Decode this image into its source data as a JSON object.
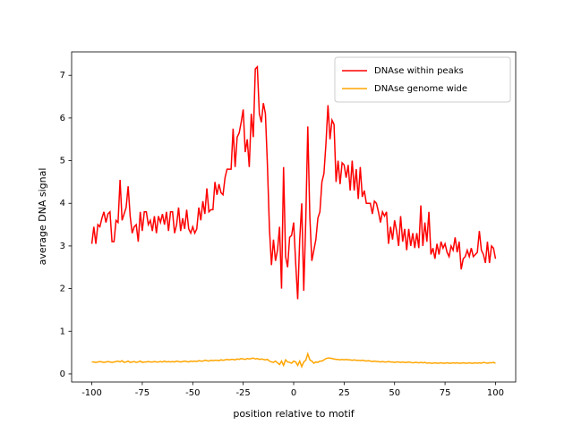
{
  "chart_data": {
    "type": "line",
    "xlabel": "position relative to motif",
    "ylabel": "average DNA signal",
    "x": [
      -100,
      -99,
      -98,
      -97,
      -96,
      -95,
      -94,
      -93,
      -92,
      -91,
      -90,
      -89,
      -88,
      -87,
      -86,
      -85,
      -84,
      -83,
      -82,
      -81,
      -80,
      -79,
      -78,
      -77,
      -76,
      -75,
      -74,
      -73,
      -72,
      -71,
      -70,
      -69,
      -68,
      -67,
      -66,
      -65,
      -64,
      -63,
      -62,
      -61,
      -60,
      -59,
      -58,
      -57,
      -56,
      -55,
      -54,
      -53,
      -52,
      -51,
      -50,
      -49,
      -48,
      -47,
      -46,
      -45,
      -44,
      -43,
      -42,
      -41,
      -40,
      -39,
      -38,
      -37,
      -36,
      -35,
      -34,
      -33,
      -32,
      -31,
      -30,
      -29,
      -28,
      -27,
      -26,
      -25,
      -24,
      -23,
      -22,
      -21,
      -20,
      -19,
      -18,
      -17,
      -16,
      -15,
      -14,
      -13,
      -12,
      -11,
      -10,
      -9,
      -8,
      -7,
      -6,
      -5,
      -4,
      -3,
      -2,
      -1,
      0,
      1,
      2,
      3,
      4,
      5,
      6,
      7,
      8,
      9,
      10,
      11,
      12,
      13,
      14,
      15,
      16,
      17,
      18,
      19,
      20,
      21,
      22,
      23,
      24,
      25,
      26,
      27,
      28,
      29,
      30,
      31,
      32,
      33,
      34,
      35,
      36,
      37,
      38,
      39,
      40,
      41,
      42,
      43,
      44,
      45,
      46,
      47,
      48,
      49,
      50,
      51,
      52,
      53,
      54,
      55,
      56,
      57,
      58,
      59,
      60,
      61,
      62,
      63,
      64,
      65,
      66,
      67,
      68,
      69,
      70,
      71,
      72,
      73,
      74,
      75,
      76,
      77,
      78,
      79,
      80,
      81,
      82,
      83,
      84,
      85,
      86,
      87,
      88,
      89,
      90,
      91,
      92,
      93,
      94,
      95,
      96,
      97,
      98,
      99,
      100
    ],
    "series": [
      {
        "name": "DNAse within peaks",
        "color": "#ff0000",
        "values": [
          3.05,
          3.45,
          3.05,
          3.5,
          3.45,
          3.65,
          3.8,
          3.55,
          3.75,
          3.8,
          3.1,
          3.1,
          3.6,
          3.55,
          4.55,
          3.6,
          3.75,
          3.9,
          4.4,
          3.7,
          3.3,
          3.45,
          3.5,
          3.1,
          3.8,
          3.35,
          3.8,
          3.8,
          3.5,
          3.6,
          3.35,
          3.7,
          3.3,
          3.7,
          3.55,
          3.75,
          3.5,
          3.8,
          3.35,
          3.8,
          3.8,
          3.3,
          3.5,
          3.9,
          3.35,
          3.65,
          3.4,
          3.85,
          3.4,
          3.3,
          3.45,
          3.3,
          3.4,
          3.9,
          3.6,
          4.05,
          3.75,
          4.35,
          3.8,
          3.85,
          3.85,
          4.5,
          4.2,
          4.45,
          4.25,
          4.2,
          4.6,
          4.8,
          4.8,
          4.8,
          5.75,
          4.85,
          5.55,
          5.65,
          5.9,
          6.2,
          5.2,
          5.5,
          4.85,
          6.1,
          5.55,
          7.15,
          7.2,
          6.1,
          5.9,
          6.35,
          6.1,
          4.9,
          3.4,
          2.55,
          3.15,
          2.65,
          2.9,
          3.45,
          2.0,
          4.85,
          2.75,
          2.5,
          3.2,
          3.25,
          3.55,
          2.6,
          1.75,
          3.15,
          4.0,
          1.95,
          3.6,
          5.8,
          3.7,
          2.65,
          2.9,
          3.15,
          3.65,
          3.8,
          4.5,
          4.7,
          5.4,
          6.3,
          5.5,
          5.95,
          5.85,
          4.5,
          5.0,
          4.45,
          4.95,
          4.9,
          4.6,
          4.9,
          4.3,
          5.0,
          4.3,
          4.8,
          4.1,
          4.85,
          4.15,
          4.3,
          4.0,
          4.0,
          4.0,
          3.75,
          4.05,
          4.0,
          3.8,
          3.55,
          3.8,
          3.7,
          3.8,
          3.05,
          3.45,
          3.15,
          3.6,
          3.35,
          3.0,
          3.7,
          3.1,
          3.4,
          2.9,
          3.4,
          3.0,
          3.3,
          2.95,
          3.3,
          2.95,
          3.95,
          3.0,
          3.55,
          3.1,
          3.8,
          2.8,
          2.95,
          2.7,
          3.05,
          2.8,
          3.1,
          2.95,
          3.05,
          2.85,
          2.75,
          3.0,
          2.9,
          3.2,
          2.85,
          3.1,
          2.45,
          2.7,
          2.75,
          2.9,
          2.75,
          2.95,
          2.75,
          2.8,
          2.85,
          3.35,
          2.9,
          2.8,
          2.6,
          3.1,
          2.6,
          3.0,
          2.95,
          2.7
        ]
      },
      {
        "name": "DNAse genome wide",
        "color": "#ffa500",
        "values": [
          0.28,
          0.28,
          0.27,
          0.28,
          0.29,
          0.28,
          0.27,
          0.28,
          0.29,
          0.28,
          0.27,
          0.28,
          0.29,
          0.3,
          0.28,
          0.31,
          0.27,
          0.28,
          0.3,
          0.27,
          0.28,
          0.29,
          0.27,
          0.28,
          0.3,
          0.27,
          0.28,
          0.28,
          0.29,
          0.28,
          0.28,
          0.29,
          0.28,
          0.28,
          0.29,
          0.28,
          0.3,
          0.28,
          0.29,
          0.28,
          0.29,
          0.28,
          0.3,
          0.29,
          0.28,
          0.29,
          0.3,
          0.29,
          0.28,
          0.3,
          0.29,
          0.3,
          0.29,
          0.31,
          0.3,
          0.3,
          0.32,
          0.31,
          0.3,
          0.32,
          0.31,
          0.32,
          0.32,
          0.31,
          0.33,
          0.32,
          0.33,
          0.34,
          0.33,
          0.34,
          0.34,
          0.33,
          0.35,
          0.34,
          0.36,
          0.35,
          0.34,
          0.36,
          0.35,
          0.36,
          0.37,
          0.35,
          0.36,
          0.34,
          0.35,
          0.34,
          0.33,
          0.34,
          0.3,
          0.28,
          0.27,
          0.3,
          0.26,
          0.22,
          0.3,
          0.2,
          0.33,
          0.28,
          0.27,
          0.25,
          0.3,
          0.28,
          0.2,
          0.3,
          0.17,
          0.28,
          0.32,
          0.47,
          0.33,
          0.3,
          0.25,
          0.28,
          0.27,
          0.3,
          0.3,
          0.33,
          0.36,
          0.37,
          0.37,
          0.36,
          0.35,
          0.34,
          0.34,
          0.33,
          0.34,
          0.33,
          0.34,
          0.33,
          0.33,
          0.32,
          0.33,
          0.32,
          0.32,
          0.31,
          0.32,
          0.31,
          0.3,
          0.31,
          0.3,
          0.29,
          0.3,
          0.29,
          0.29,
          0.28,
          0.29,
          0.28,
          0.28,
          0.29,
          0.28,
          0.28,
          0.27,
          0.28,
          0.28,
          0.27,
          0.28,
          0.27,
          0.27,
          0.28,
          0.27,
          0.26,
          0.27,
          0.27,
          0.26,
          0.27,
          0.26,
          0.27,
          0.25,
          0.26,
          0.25,
          0.25,
          0.26,
          0.25,
          0.25,
          0.26,
          0.25,
          0.25,
          0.26,
          0.25,
          0.25,
          0.26,
          0.25,
          0.26,
          0.25,
          0.25,
          0.26,
          0.25,
          0.25,
          0.26,
          0.25,
          0.25,
          0.26,
          0.25,
          0.26,
          0.25,
          0.27,
          0.26,
          0.25,
          0.26,
          0.26,
          0.27,
          0.25
        ]
      }
    ],
    "xlim": [
      -110,
      110
    ],
    "xticks": [
      -100,
      -75,
      -50,
      -25,
      0,
      25,
      50,
      75,
      100
    ],
    "ylim": [
      -0.19,
      7.55
    ],
    "yticks": [
      0,
      1,
      2,
      3,
      4,
      5,
      6,
      7
    ],
    "legend": "upper right",
    "grid": false
  }
}
